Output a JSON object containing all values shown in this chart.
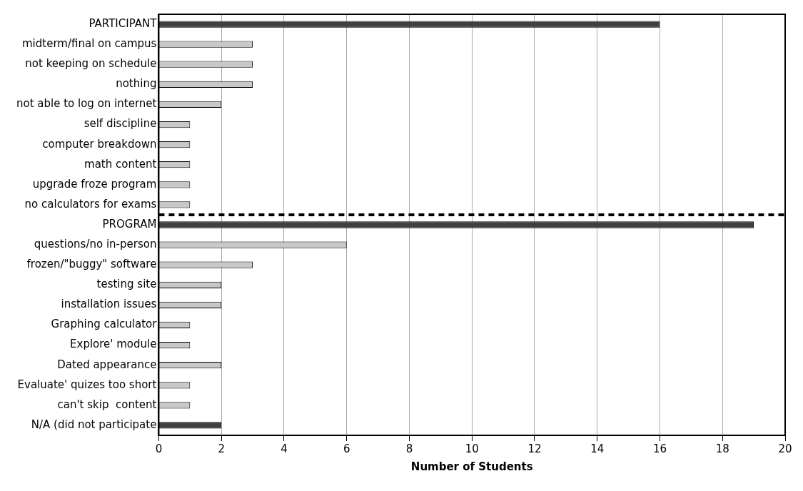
{
  "chart_data": {
    "type": "bar",
    "orientation": "horizontal",
    "xlabel": "Number of Students",
    "categories": [
      "PARTICIPANT",
      "midterm/final on campus",
      "not keeping on schedule",
      "nothing",
      "not able to log on internet",
      "self discipline",
      "computer breakdown",
      "math content",
      "upgrade froze program",
      "no calculators for exams",
      "PROGRAM",
      "questions/no in-person",
      "frozen/\"buggy\" software",
      "testing site",
      "installation issues",
      "Graphing calculator",
      "Explore' module",
      "Dated appearance",
      "Evaluate' quizes too short",
      "can't skip  content",
      "N/A (did not participate"
    ],
    "values": [
      16,
      3,
      3,
      3,
      2,
      1,
      1,
      1,
      1,
      1,
      19,
      6,
      3,
      2,
      2,
      1,
      1,
      2,
      1,
      1,
      2
    ],
    "colors": [
      "#404040",
      "#c8c8c8",
      "#c8c8c8",
      "#c8c8c8",
      "#c8c8c8",
      "#c8c8c8",
      "#c8c8c8",
      "#c8c8c8",
      "#c8c8c8",
      "#c8c8c8",
      "#404040",
      "#c8c8c8",
      "#c8c8c8",
      "#c8c8c8",
      "#c8c8c8",
      "#c8c8c8",
      "#c8c8c8",
      "#c8c8c8",
      "#c8c8c8",
      "#c8c8c8",
      "#404040"
    ],
    "xlim": [
      0,
      20
    ],
    "xticks": [
      0,
      2,
      4,
      6,
      8,
      10,
      12,
      14,
      16,
      18,
      20
    ],
    "grid": "x",
    "legend": false,
    "ref_lines": [
      {
        "axis": "y",
        "value": "PROGRAM",
        "color": "#000000",
        "line_style": "dashed"
      }
    ]
  }
}
